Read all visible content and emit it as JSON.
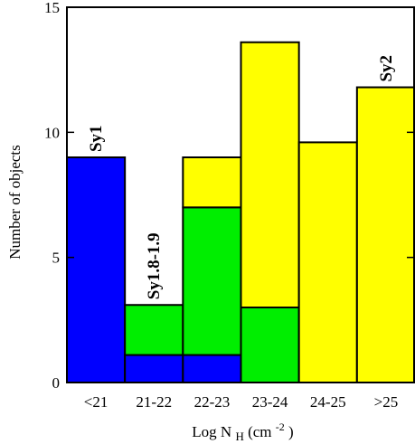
{
  "chart_data": {
    "type": "bar",
    "stacked": true,
    "categories": [
      "<21",
      "21-22",
      "22-23",
      "23-24",
      "24-25",
      ">25"
    ],
    "series": [
      {
        "color": "#0000ff",
        "values": [
          9,
          1.1,
          1.1,
          0,
          0,
          0
        ]
      },
      {
        "color": "#00ee00",
        "values": [
          0,
          2,
          5.9,
          3,
          0,
          0
        ]
      },
      {
        "color": "#ffff00",
        "values": [
          0,
          0,
          2,
          10.6,
          9.6,
          11.8
        ]
      }
    ],
    "title": "",
    "xlabel": {
      "main": "Log N",
      "subscript": "H",
      "unit_prefix": "(cm",
      "unit_exponent": "-2",
      "unit_suffix": " )"
    },
    "ylabel": "Number of objects",
    "ylim": [
      0,
      15
    ],
    "yticks": [
      "0",
      "5",
      "10",
      "15"
    ],
    "grid": false,
    "legend": "none",
    "annotations": [
      {
        "text": "Sy1",
        "category": "<21"
      },
      {
        "text": "Sy1.8-1.9",
        "category": "21-22"
      },
      {
        "text": "Sy2",
        "category": ">25"
      }
    ]
  }
}
